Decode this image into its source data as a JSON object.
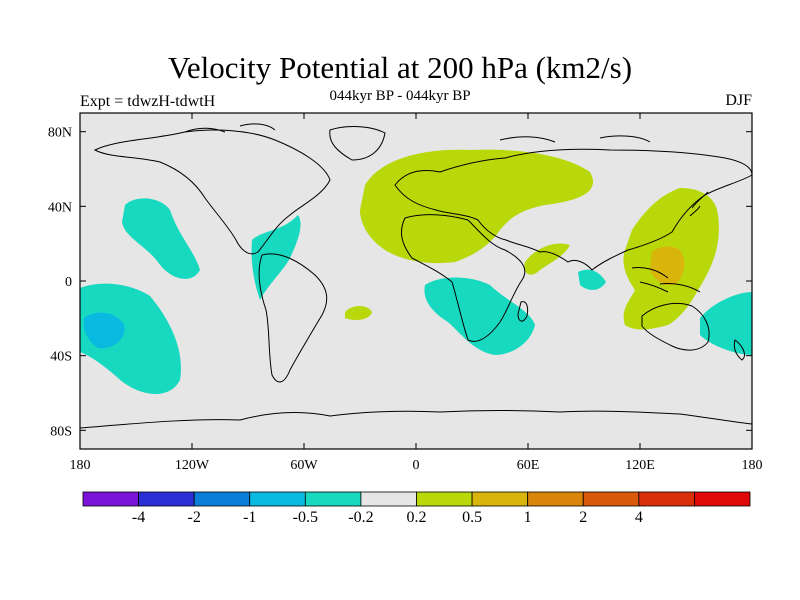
{
  "title": "Velocity Potential at 200 hPa (km2/s)",
  "subtitle": "044kyr BP - 044kyr BP",
  "left_label": "Expt = tdwzH-tdwtH",
  "right_label": "DJF",
  "map": {
    "projection": "cylindrical-equidistant",
    "lon_range": [
      -180,
      180
    ],
    "lat_range": [
      -90,
      90
    ],
    "background": "#e6e6e6",
    "x_ticks": [
      "180",
      "120W",
      "60W",
      "0",
      "60E",
      "120E",
      "180"
    ],
    "y_ticks": [
      "80N",
      "40N",
      "0",
      "40S",
      "80S"
    ]
  },
  "colorbar": {
    "colors": [
      "#7a14d8",
      "#2b2fd6",
      "#0a7ed8",
      "#0ab9e0",
      "#17d9c0",
      "#e6e6e6",
      "#b9d80a",
      "#d9b40a",
      "#d9850a",
      "#d95a0a",
      "#d9300a",
      "#e00a0a"
    ],
    "labels": [
      "-4",
      "-2",
      "-1",
      "-0.5",
      "-0.2",
      "0.2",
      "0.5",
      "1",
      "2",
      "4"
    ]
  }
}
